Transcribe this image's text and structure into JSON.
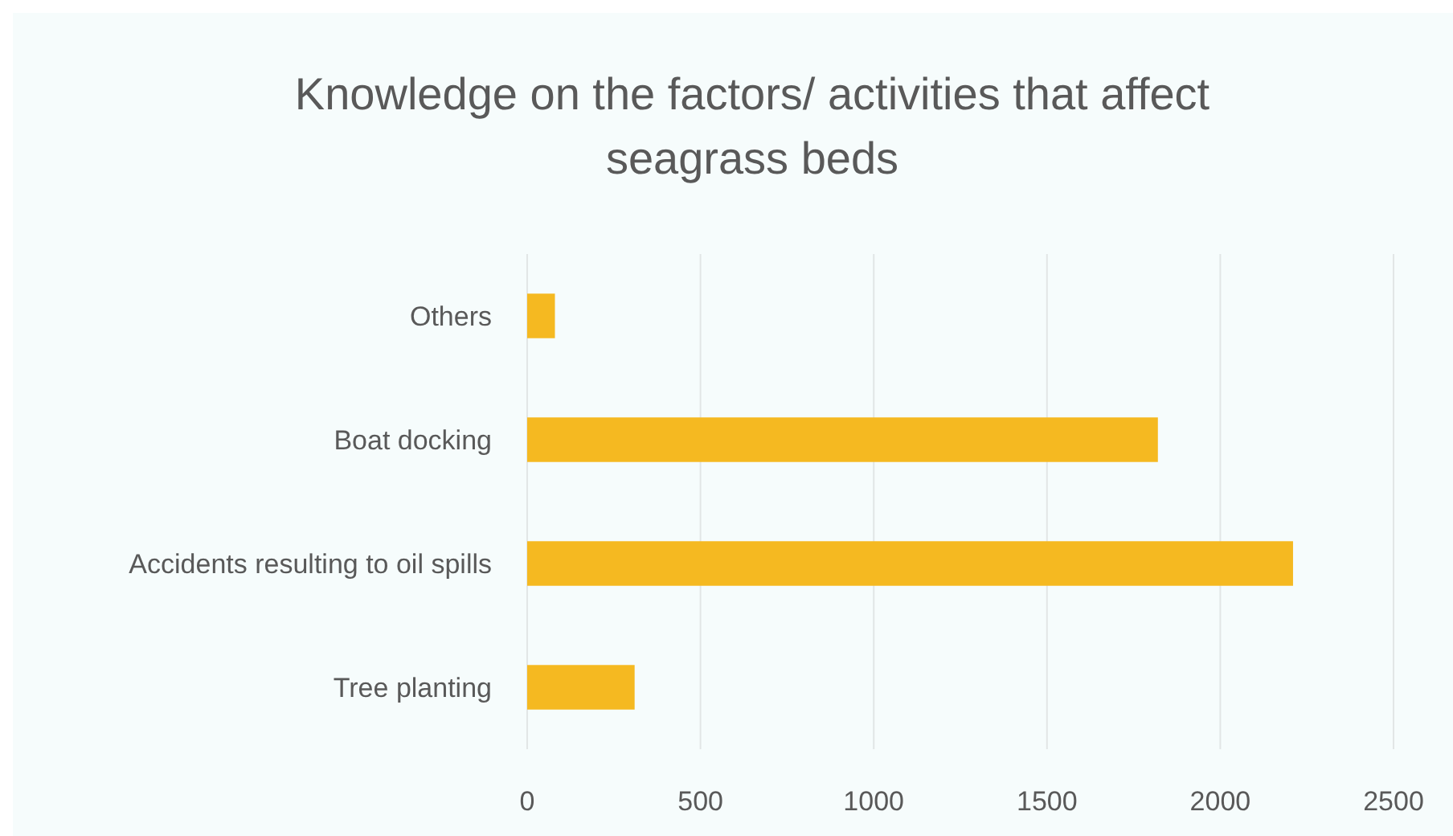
{
  "chart_data": {
    "type": "bar",
    "orientation": "horizontal",
    "title": "Knowledge on the factors/ activities that affect seagrass beds",
    "categories": [
      "Others",
      "Boat docking",
      "Accidents resulting to oil spills",
      "Tree planting"
    ],
    "values": [
      80,
      1820,
      2210,
      310
    ],
    "color": "#f5b921",
    "xlim": [
      0,
      2500
    ],
    "xticks": [
      0,
      500,
      1000,
      1500,
      2000,
      2500
    ],
    "grid": "x"
  }
}
